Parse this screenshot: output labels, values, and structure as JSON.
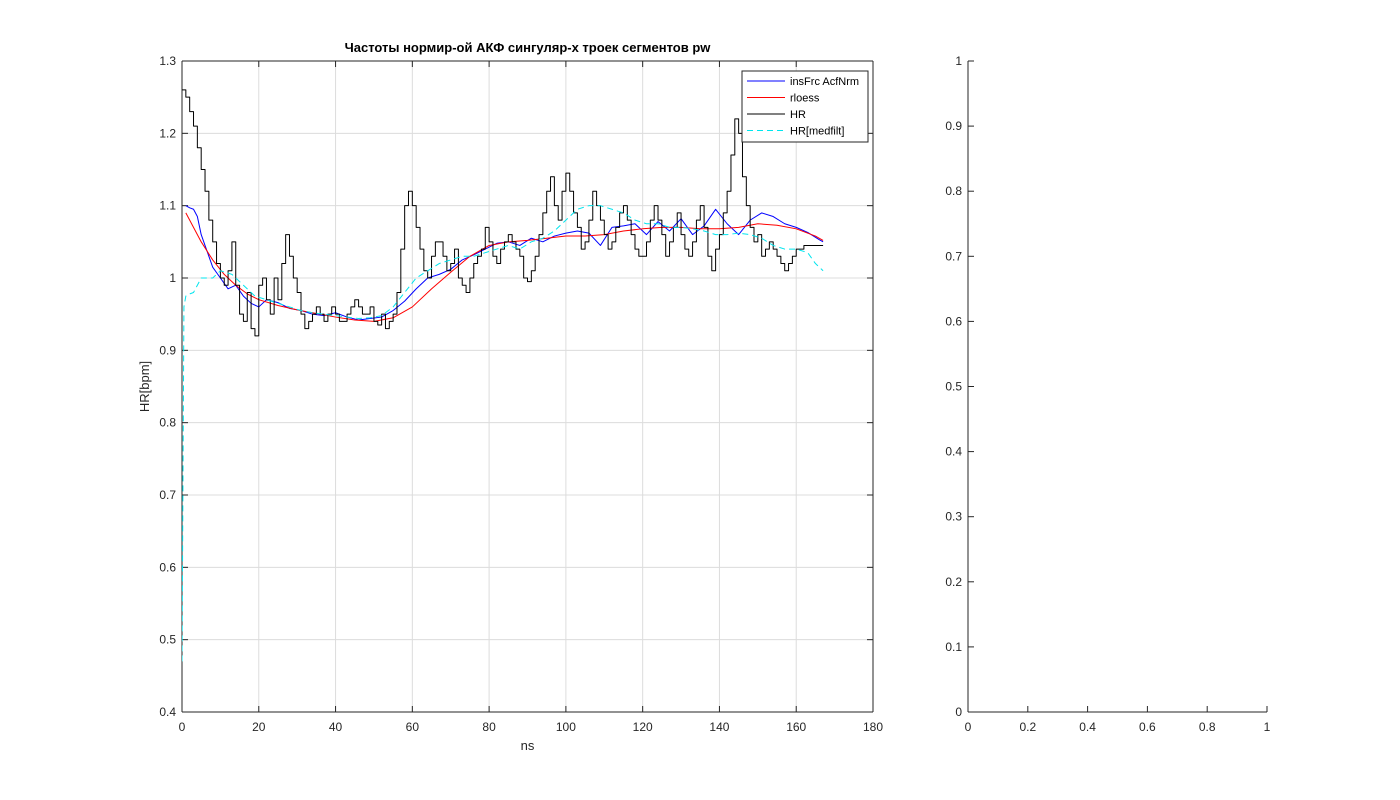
{
  "chart_data": [
    {
      "type": "line",
      "title": "Частоты нормир-ой АКФ сингуляр-х троек сегментов pw",
      "xlabel": "ns",
      "ylabel": "HR[bpm]",
      "xlim": [
        0,
        180
      ],
      "ylim": [
        0.4,
        1.3
      ],
      "xticks": [
        "0",
        "20",
        "40",
        "60",
        "80",
        "100",
        "120",
        "140",
        "160",
        "180"
      ],
      "yticks": [
        "0.4",
        "0.5",
        "0.6",
        "0.7",
        "0.8",
        "0.9",
        "1",
        "1.1",
        "1.2",
        "1.3"
      ],
      "grid": true,
      "legend_position": "top-right",
      "series": [
        {
          "name": "insFrc AcfNrm",
          "color": "#0000ff",
          "style": "solid",
          "x": [
            1,
            2,
            3,
            4,
            5,
            6,
            7,
            8,
            10,
            12,
            14,
            16,
            18,
            20,
            22,
            25,
            28,
            31,
            34,
            37,
            40,
            43,
            46,
            49,
            52,
            55,
            58,
            61,
            64,
            67,
            70,
            73,
            76,
            79,
            82,
            85,
            88,
            91,
            94,
            97,
            100,
            103,
            106,
            109,
            112,
            115,
            118,
            121,
            124,
            127,
            130,
            133,
            136,
            139,
            142,
            145,
            148,
            151,
            154,
            157,
            160,
            163,
            166,
            167
          ],
          "y": [
            1.1,
            1.097,
            1.095,
            1.085,
            1.06,
            1.045,
            1.03,
            1.015,
            1.0,
            0.985,
            0.99,
            0.975,
            0.965,
            0.96,
            0.97,
            0.966,
            0.958,
            0.955,
            0.95,
            0.948,
            0.952,
            0.946,
            0.942,
            0.944,
            0.946,
            0.955,
            0.968,
            0.985,
            1.0,
            1.005,
            1.012,
            1.025,
            1.032,
            1.04,
            1.048,
            1.05,
            1.045,
            1.055,
            1.05,
            1.058,
            1.062,
            1.065,
            1.062,
            1.045,
            1.07,
            1.072,
            1.075,
            1.06,
            1.078,
            1.065,
            1.082,
            1.06,
            1.072,
            1.095,
            1.075,
            1.06,
            1.08,
            1.09,
            1.085,
            1.075,
            1.07,
            1.063,
            1.053,
            1.05
          ]
        },
        {
          "name": "rloess",
          "color": "#ff0000",
          "style": "solid",
          "x": [
            1,
            3,
            5,
            8,
            11,
            14,
            17,
            20,
            25,
            30,
            35,
            40,
            45,
            50,
            55,
            60,
            65,
            70,
            75,
            80,
            85,
            90,
            95,
            100,
            105,
            110,
            115,
            120,
            125,
            130,
            135,
            140,
            145,
            150,
            155,
            160,
            165,
            167
          ],
          "y": [
            1.09,
            1.07,
            1.05,
            1.025,
            1.005,
            0.99,
            0.978,
            0.97,
            0.962,
            0.956,
            0.951,
            0.946,
            0.942,
            0.94,
            0.945,
            0.96,
            0.985,
            1.008,
            1.03,
            1.045,
            1.05,
            1.052,
            1.055,
            1.058,
            1.058,
            1.06,
            1.065,
            1.068,
            1.07,
            1.07,
            1.068,
            1.068,
            1.07,
            1.075,
            1.073,
            1.068,
            1.058,
            1.052
          ]
        },
        {
          "name": "HR",
          "color": "#000000",
          "style": "step",
          "x": [
            0,
            1,
            2,
            3,
            4,
            5,
            6,
            7,
            8,
            9,
            10,
            11,
            12,
            13,
            14,
            15,
            16,
            17,
            18,
            19,
            20,
            21,
            22,
            23,
            24,
            25,
            26,
            27,
            28,
            29,
            30,
            31,
            32,
            33,
            34,
            35,
            36,
            37,
            38,
            39,
            40,
            41,
            42,
            43,
            44,
            45,
            46,
            47,
            48,
            49,
            50,
            51,
            52,
            53,
            54,
            55,
            56,
            57,
            58,
            59,
            60,
            61,
            62,
            63,
            64,
            65,
            66,
            67,
            68,
            69,
            70,
            71,
            72,
            73,
            74,
            75,
            76,
            77,
            78,
            79,
            80,
            81,
            82,
            83,
            84,
            85,
            86,
            87,
            88,
            89,
            90,
            91,
            92,
            93,
            94,
            95,
            96,
            97,
            98,
            99,
            100,
            101,
            102,
            103,
            104,
            105,
            106,
            107,
            108,
            109,
            110,
            111,
            112,
            113,
            114,
            115,
            116,
            117,
            118,
            119,
            120,
            121,
            122,
            123,
            124,
            125,
            126,
            127,
            128,
            129,
            130,
            131,
            132,
            133,
            134,
            135,
            136,
            137,
            138,
            139,
            140,
            141,
            142,
            143,
            144,
            145,
            146,
            147,
            148,
            149,
            150,
            151,
            152,
            153,
            154,
            155,
            156,
            157,
            158,
            159,
            160,
            161,
            162,
            163,
            164,
            165,
            166,
            167
          ],
          "y": [
            1.26,
            1.25,
            1.23,
            1.21,
            1.18,
            1.15,
            1.12,
            1.08,
            1.05,
            1.02,
            1.0,
            0.99,
            1.01,
            1.05,
            0.99,
            0.95,
            0.94,
            0.98,
            0.93,
            0.92,
            0.99,
            1.0,
            0.97,
            0.95,
            1.0,
            0.97,
            1.02,
            1.06,
            1.03,
            1.0,
            0.98,
            0.95,
            0.93,
            0.94,
            0.95,
            0.96,
            0.95,
            0.94,
            0.95,
            0.96,
            0.95,
            0.94,
            0.94,
            0.95,
            0.96,
            0.97,
            0.96,
            0.95,
            0.95,
            0.96,
            0.94,
            0.935,
            0.95,
            0.93,
            0.94,
            0.95,
            0.98,
            1.04,
            1.1,
            1.12,
            1.1,
            1.07,
            1.04,
            1.01,
            1.0,
            1.03,
            1.05,
            1.05,
            1.03,
            1.01,
            1.02,
            1.04,
            1.0,
            0.99,
            0.98,
            1.0,
            1.02,
            1.03,
            1.04,
            1.07,
            1.05,
            1.03,
            1.02,
            1.04,
            1.05,
            1.06,
            1.05,
            1.04,
            1.03,
            1.0,
            0.995,
            1.01,
            1.03,
            1.06,
            1.09,
            1.12,
            1.14,
            1.1,
            1.08,
            1.12,
            1.145,
            1.12,
            1.09,
            1.07,
            1.04,
            1.05,
            1.08,
            1.12,
            1.1,
            1.08,
            1.06,
            1.04,
            1.05,
            1.07,
            1.09,
            1.1,
            1.08,
            1.06,
            1.04,
            1.03,
            1.03,
            1.05,
            1.08,
            1.1,
            1.08,
            1.06,
            1.03,
            1.05,
            1.07,
            1.09,
            1.06,
            1.04,
            1.03,
            1.05,
            1.08,
            1.1,
            1.07,
            1.03,
            1.01,
            1.04,
            1.06,
            1.09,
            1.12,
            1.17,
            1.22,
            1.2,
            1.14,
            1.1,
            1.07,
            1.05,
            1.06,
            1.03,
            1.04,
            1.05,
            1.04,
            1.03,
            1.02,
            1.01,
            1.02,
            1.03,
            1.04,
            1.04,
            1.045,
            1.045,
            1.045,
            1.045,
            1.045,
            1.045
          ]
        },
        {
          "name": "HR[medfilt]",
          "color": "#00e5ee",
          "style": "dashed",
          "x": [
            0,
            0.5,
            1,
            2,
            3,
            4,
            5,
            6,
            8,
            10,
            13,
            16,
            19,
            22,
            25,
            28,
            31,
            34,
            37,
            40,
            43,
            46,
            49,
            52,
            55,
            58,
            61,
            64,
            67,
            70,
            73,
            76,
            79,
            82,
            85,
            88,
            91,
            94,
            97,
            100,
            103,
            106,
            109,
            112,
            115,
            118,
            121,
            124,
            127,
            130,
            133,
            136,
            139,
            142,
            145,
            148,
            151,
            154,
            157,
            160,
            163,
            165,
            167
          ],
          "y": [
            0.47,
            0.96,
            0.975,
            0.978,
            0.98,
            0.99,
            1.0,
            1.0,
            1.0,
            1.01,
            1.005,
            0.99,
            0.975,
            0.97,
            0.965,
            0.96,
            0.955,
            0.952,
            0.95,
            0.948,
            0.946,
            0.944,
            0.945,
            0.948,
            0.96,
            0.98,
            1.0,
            1.01,
            1.02,
            1.025,
            1.03,
            1.03,
            1.035,
            1.04,
            1.045,
            1.04,
            1.05,
            1.055,
            1.065,
            1.08,
            1.095,
            1.1,
            1.1,
            1.095,
            1.09,
            1.08,
            1.075,
            1.075,
            1.07,
            1.07,
            1.068,
            1.065,
            1.06,
            1.06,
            1.062,
            1.06,
            1.055,
            1.045,
            1.04,
            1.04,
            1.035,
            1.02,
            1.01
          ]
        }
      ]
    },
    {
      "type": "line",
      "title": "",
      "xlabel": "",
      "ylabel": "",
      "xlim": [
        0,
        1
      ],
      "ylim": [
        0,
        1
      ],
      "xticks": [
        "0",
        "0.2",
        "0.4",
        "0.6",
        "0.8",
        "1"
      ],
      "yticks": [
        "0",
        "0.1",
        "0.2",
        "0.3",
        "0.4",
        "0.5",
        "0.6",
        "0.7",
        "0.8",
        "0.9",
        "1"
      ],
      "grid": false,
      "series": []
    }
  ]
}
